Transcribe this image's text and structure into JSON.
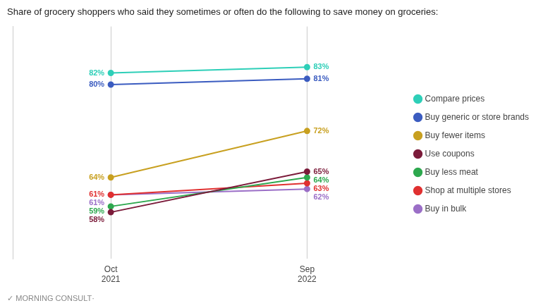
{
  "chart_data": {
    "type": "line",
    "title": "Share of grocery shoppers who said they sometimes or often do the following to save money on groceries:",
    "categories": [
      "Oct\n2021",
      "Sep\n2022"
    ],
    "series": [
      {
        "name": "Compare prices",
        "color": "#2ecfb8",
        "values": [
          82,
          83
        ],
        "value_labels": [
          "82%",
          "83%"
        ]
      },
      {
        "name": "Buy generic or store brands",
        "color": "#3b5cc0",
        "values": [
          80,
          81
        ],
        "value_labels": [
          "80%",
          "81%"
        ]
      },
      {
        "name": "Buy fewer items",
        "color": "#c8a020",
        "values": [
          64,
          72
        ],
        "value_labels": [
          "64%",
          "72%"
        ]
      },
      {
        "name": "Use coupons",
        "color": "#7b1b3a",
        "values": [
          58,
          65
        ],
        "value_labels": [
          "58%",
          "65%"
        ]
      },
      {
        "name": "Buy less meat",
        "color": "#2da84e",
        "values": [
          59,
          64
        ],
        "value_labels": [
          "59%",
          "64%"
        ]
      },
      {
        "name": "Shop at multiple stores",
        "color": "#e03030",
        "values": [
          61,
          63
        ],
        "value_labels": [
          "61%",
          "63%"
        ]
      },
      {
        "name": "Buy in bulk",
        "color": "#9b6fc7",
        "values": [
          61,
          62
        ],
        "value_labels": [
          "61%",
          "62%"
        ]
      }
    ],
    "ylim": [
      50,
      90
    ],
    "grid": "x",
    "legend": "right",
    "data_labels": true,
    "tick_labels": "x",
    "marker": "circle",
    "annotations": [
      "✓ MORNING CONSULT·"
    ]
  }
}
